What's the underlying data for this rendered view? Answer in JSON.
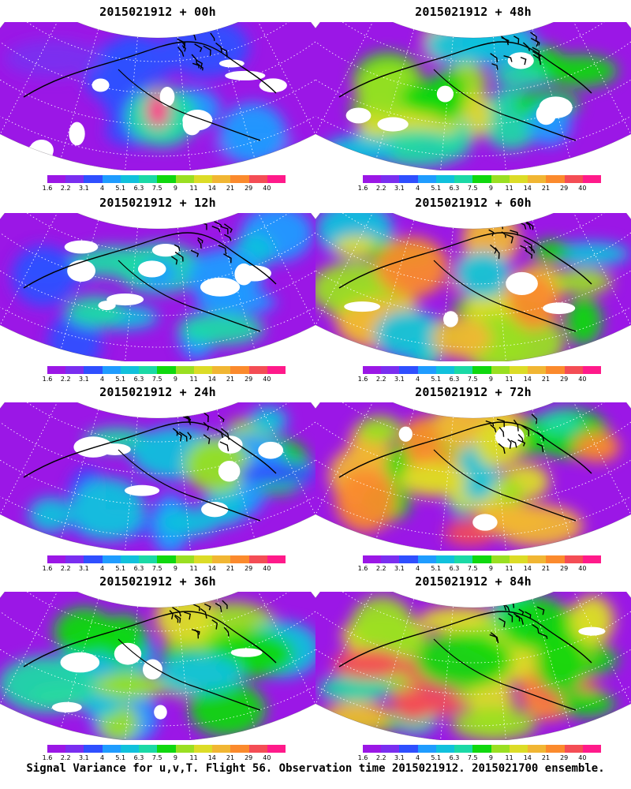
{
  "palette": [
    "#9b17e6",
    "#7a2ef0",
    "#2f4fff",
    "#1f9cff",
    "#11c1dc",
    "#1bd9a6",
    "#10d80f",
    "#9adf22",
    "#dcdc27",
    "#f1b633",
    "#fb8a2d",
    "#f44d55",
    "#ff1a8a"
  ],
  "colorbar_ticks": [
    "1.6",
    "2.2",
    "3.1",
    "4",
    "5.1",
    "6.3",
    "7.5",
    "9",
    "11",
    "14",
    "21",
    "29",
    "40"
  ],
  "panels": [
    {
      "title": "2015021912 + 00h",
      "level": 0
    },
    {
      "title": "2015021912 + 48h",
      "level": 3
    },
    {
      "title": "2015021912 + 12h",
      "level": 1
    },
    {
      "title": "2015021912 + 60h",
      "level": 4
    },
    {
      "title": "2015021912 + 24h",
      "level": 2
    },
    {
      "title": "2015021912 + 72h",
      "level": 5
    },
    {
      "title": "2015021912 + 36h",
      "level": 2.5
    },
    {
      "title": "2015021912 + 84h",
      "level": 6
    }
  ],
  "caption": "Signal Variance for u,v,T. Flight 56. Observation time 2015021912. 2015021700 ensemble."
}
